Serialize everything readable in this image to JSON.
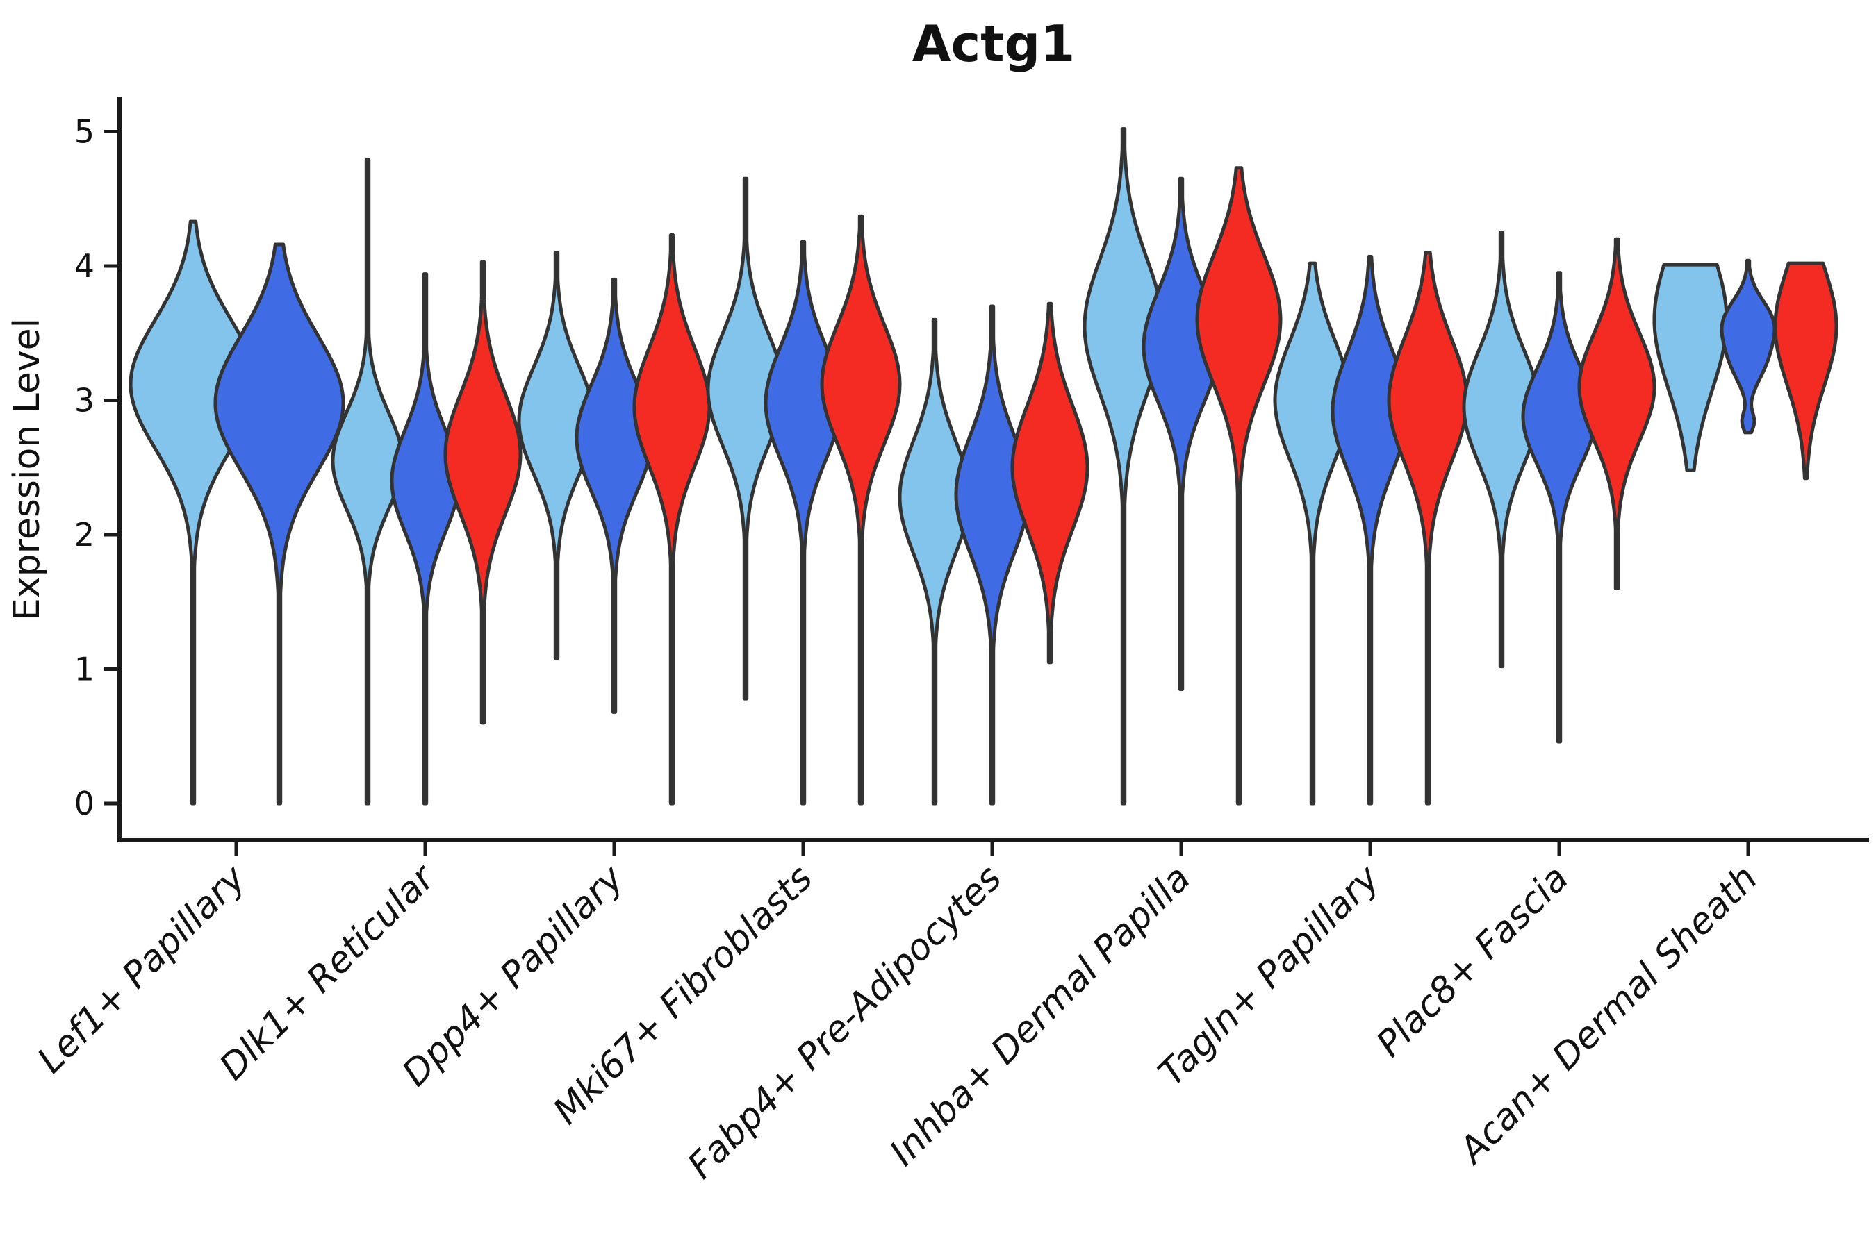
{
  "title": "Actg1",
  "y_axis": {
    "label": "Expression Level",
    "ticks": [
      "0",
      "1",
      "2",
      "3",
      "4",
      "5"
    ]
  },
  "x_axis": {
    "categories": [
      "Lef1+ Papillary",
      "Dlk1+ Reticular",
      "Dpp4+ Papillary",
      "Mki67+ Fibroblasts",
      "Fabp4+ Pre-Adipocytes",
      "Inhba+ Dermal Papilla",
      "Tagln+ Papillary",
      "Plac8+ Fascia",
      "Acan+ Dermal Sheath"
    ]
  },
  "colors": {
    "series": [
      "#82C4EC",
      "#3F6BE5",
      "#F32B22"
    ],
    "outline": "#333333",
    "axis": "#1a1a1a",
    "background": "#ffffff"
  },
  "chart_data": {
    "type": "violin",
    "title": "Actg1",
    "xlabel": "",
    "ylabel": "Expression Level",
    "ylim": [
      0,
      5
    ],
    "yticks": [
      0,
      1,
      2,
      3,
      4,
      5
    ],
    "grid": false,
    "legend": "none",
    "categories": [
      "Lef1+ Papillary",
      "Dlk1+ Reticular",
      "Dpp4+ Papillary",
      "Mki67+ Fibroblasts",
      "Fabp4+ Pre-Adipocytes",
      "Inhba+ Dermal Papilla",
      "Tagln+ Papillary",
      "Plac8+ Fascia",
      "Acan+ Dermal Sheath"
    ],
    "series_colors": [
      "#82C4EC",
      "#3F6BE5",
      "#F32B22"
    ],
    "violins": [
      {
        "category_index": 0,
        "series": 0,
        "min": 0.0,
        "max": 4.33,
        "profile": [
          [
            3.12,
            0.48,
            1.0
          ]
        ],
        "hw": 90
      },
      {
        "category_index": 0,
        "series": 1,
        "min": 0.0,
        "max": 4.16,
        "profile": [
          [
            2.98,
            0.5,
            1.0
          ]
        ],
        "hw": 92
      },
      {
        "category_index": 1,
        "series": 0,
        "min": 0.0,
        "max": 4.79,
        "profile": [
          [
            2.55,
            0.36,
            1.0
          ]
        ],
        "hw": 50
      },
      {
        "category_index": 1,
        "series": 1,
        "min": 0.0,
        "max": 3.94,
        "profile": [
          [
            2.4,
            0.38,
            1.0
          ]
        ],
        "hw": 48
      },
      {
        "category_index": 1,
        "series": 2,
        "min": 0.6,
        "max": 4.03,
        "profile": [
          [
            2.6,
            0.44,
            1.0
          ]
        ],
        "hw": 54
      },
      {
        "category_index": 2,
        "series": 0,
        "min": 1.08,
        "max": 4.1,
        "profile": [
          [
            2.85,
            0.4,
            1.0
          ]
        ],
        "hw": 54
      },
      {
        "category_index": 2,
        "series": 1,
        "min": 0.68,
        "max": 3.9,
        "profile": [
          [
            2.72,
            0.4,
            1.0
          ]
        ],
        "hw": 54
      },
      {
        "category_index": 2,
        "series": 2,
        "min": 0.0,
        "max": 4.23,
        "profile": [
          [
            2.95,
            0.44,
            1.0
          ]
        ],
        "hw": 54
      },
      {
        "category_index": 3,
        "series": 0,
        "min": 0.78,
        "max": 4.65,
        "profile": [
          [
            3.08,
            0.42,
            1.0
          ]
        ],
        "hw": 54
      },
      {
        "category_index": 3,
        "series": 1,
        "min": 0.0,
        "max": 4.18,
        "profile": [
          [
            2.98,
            0.42,
            1.0
          ]
        ],
        "hw": 54
      },
      {
        "category_index": 3,
        "series": 2,
        "min": 0.0,
        "max": 4.37,
        "profile": [
          [
            3.12,
            0.44,
            1.0
          ]
        ],
        "hw": 56
      },
      {
        "category_index": 4,
        "series": 0,
        "min": 0.0,
        "max": 3.6,
        "profile": [
          [
            2.28,
            0.42,
            1.0
          ]
        ],
        "hw": 50
      },
      {
        "category_index": 4,
        "series": 1,
        "min": 0.0,
        "max": 3.7,
        "profile": [
          [
            2.3,
            0.44,
            1.0
          ]
        ],
        "hw": 52
      },
      {
        "category_index": 4,
        "series": 2,
        "min": 1.05,
        "max": 3.72,
        "profile": [
          [
            2.5,
            0.46,
            1.0
          ]
        ],
        "hw": 54
      },
      {
        "category_index": 5,
        "series": 0,
        "min": 0.0,
        "max": 5.02,
        "profile": [
          [
            3.55,
            0.5,
            1.0
          ]
        ],
        "hw": 56
      },
      {
        "category_index": 5,
        "series": 1,
        "min": 0.85,
        "max": 4.65,
        "profile": [
          [
            3.4,
            0.42,
            1.0
          ]
        ],
        "hw": 54
      },
      {
        "category_index": 5,
        "series": 2,
        "min": 0.0,
        "max": 4.73,
        "profile": [
          [
            3.6,
            0.48,
            1.0
          ]
        ],
        "hw": 60
      },
      {
        "category_index": 6,
        "series": 0,
        "min": 0.0,
        "max": 4.02,
        "profile": [
          [
            3.0,
            0.44,
            1.0
          ]
        ],
        "hw": 54
      },
      {
        "category_index": 6,
        "series": 1,
        "min": 0.0,
        "max": 4.07,
        "profile": [
          [
            2.92,
            0.44,
            1.0
          ]
        ],
        "hw": 54
      },
      {
        "category_index": 6,
        "series": 2,
        "min": 0.0,
        "max": 4.1,
        "profile": [
          [
            3.0,
            0.46,
            1.0
          ]
        ],
        "hw": 56
      },
      {
        "category_index": 7,
        "series": 0,
        "min": 1.02,
        "max": 4.25,
        "profile": [
          [
            2.95,
            0.42,
            1.0
          ]
        ],
        "hw": 54
      },
      {
        "category_index": 7,
        "series": 1,
        "min": 0.46,
        "max": 3.95,
        "profile": [
          [
            2.88,
            0.36,
            1.0
          ]
        ],
        "hw": 52
      },
      {
        "category_index": 7,
        "series": 2,
        "min": 1.6,
        "max": 4.2,
        "profile": [
          [
            3.1,
            0.4,
            1.0
          ]
        ],
        "hw": 54
      },
      {
        "category_index": 8,
        "series": 0,
        "min": 2.48,
        "max": 4.01,
        "profile": [
          [
            3.6,
            0.52,
            1.0
          ]
        ],
        "hw": 52
      },
      {
        "category_index": 8,
        "series": 1,
        "min": 2.76,
        "max": 4.04,
        "profile": [
          [
            3.58,
            0.17,
            1.0
          ],
          [
            3.28,
            0.16,
            0.6
          ],
          [
            2.84,
            0.07,
            0.25
          ]
        ],
        "hw": 38
      },
      {
        "category_index": 8,
        "series": 2,
        "min": 2.42,
        "max": 4.02,
        "profile": [
          [
            3.55,
            0.44,
            1.0
          ]
        ],
        "hw": 44
      }
    ]
  }
}
